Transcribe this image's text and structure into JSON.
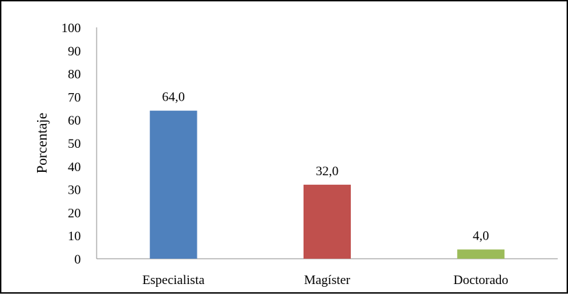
{
  "chart_data": {
    "type": "bar",
    "title": "",
    "xlabel": "",
    "ylabel": "Porcentaje",
    "ylim": [
      0,
      100
    ],
    "yticks": [
      "0",
      "10",
      "20",
      "30",
      "40",
      "50",
      "60",
      "70",
      "80",
      "90",
      "100"
    ],
    "categories": [
      "Especialista",
      "Magíster",
      "Doctorado"
    ],
    "values": [
      64.0,
      32.0,
      4.0
    ],
    "data_labels": [
      "64,0",
      "32,0",
      "4,0"
    ],
    "colors": [
      "#4F81BD",
      "#C0504D",
      "#9BBB59"
    ],
    "grid": false,
    "legend": "none"
  }
}
